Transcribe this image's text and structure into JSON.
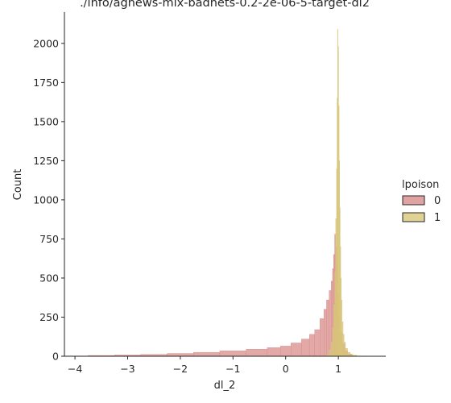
{
  "chart_data": {
    "type": "histogram",
    "title": "./info/agnews-mix-badnets-0.2-2e-06-5-target-dl2",
    "xlabel": "dl_2",
    "ylabel": "Count",
    "xlim": [
      -4.2,
      1.9
    ],
    "ylim": [
      0,
      2200
    ],
    "xticks": [
      -4,
      -3,
      -2,
      -1,
      0,
      1
    ],
    "xtick_labels": [
      "−4",
      "−3",
      "−2",
      "−1",
      "0",
      "1"
    ],
    "yticks": [
      0,
      250,
      500,
      750,
      1000,
      1250,
      1500,
      1750,
      2000
    ],
    "grid": false,
    "legend": {
      "title": "lpoison",
      "placement": "right",
      "entries": [
        {
          "label": "0",
          "color": "#d88c8a"
        },
        {
          "label": "1",
          "color": "#d8c57a"
        }
      ]
    },
    "series": [
      {
        "name": "0",
        "color": "#d88c8a",
        "fill_opacity": 0.75,
        "x": [
          -4.0,
          -3.5,
          -3.0,
          -2.5,
          -2.0,
          -1.5,
          -1.0,
          -0.5,
          -0.2,
          0.0,
          0.2,
          0.4,
          0.5,
          0.6,
          0.7,
          0.75,
          0.8,
          0.85,
          0.88,
          0.9,
          0.92,
          0.94,
          0.96,
          0.98,
          1.0,
          1.02,
          1.05,
          1.1,
          1.15,
          1.2,
          1.3
        ],
        "y": [
          2,
          5,
          8,
          12,
          18,
          25,
          35,
          45,
          55,
          65,
          85,
          110,
          140,
          170,
          240,
          300,
          360,
          420,
          480,
          560,
          650,
          780,
          700,
          580,
          400,
          260,
          150,
          80,
          35,
          15,
          3
        ]
      },
      {
        "name": "1",
        "color": "#d8c57a",
        "fill_opacity": 0.75,
        "x": [
          0.8,
          0.85,
          0.88,
          0.9,
          0.92,
          0.94,
          0.96,
          0.97,
          0.98,
          0.99,
          1.0,
          1.01,
          1.02,
          1.03,
          1.04,
          1.05,
          1.06,
          1.08,
          1.1,
          1.12,
          1.15,
          1.2,
          1.25,
          1.3,
          1.4
        ],
        "y": [
          10,
          40,
          90,
          180,
          330,
          540,
          880,
          1200,
          1650,
          2090,
          1980,
          1600,
          1250,
          950,
          700,
          500,
          360,
          220,
          140,
          90,
          50,
          25,
          12,
          6,
          2
        ]
      }
    ]
  }
}
